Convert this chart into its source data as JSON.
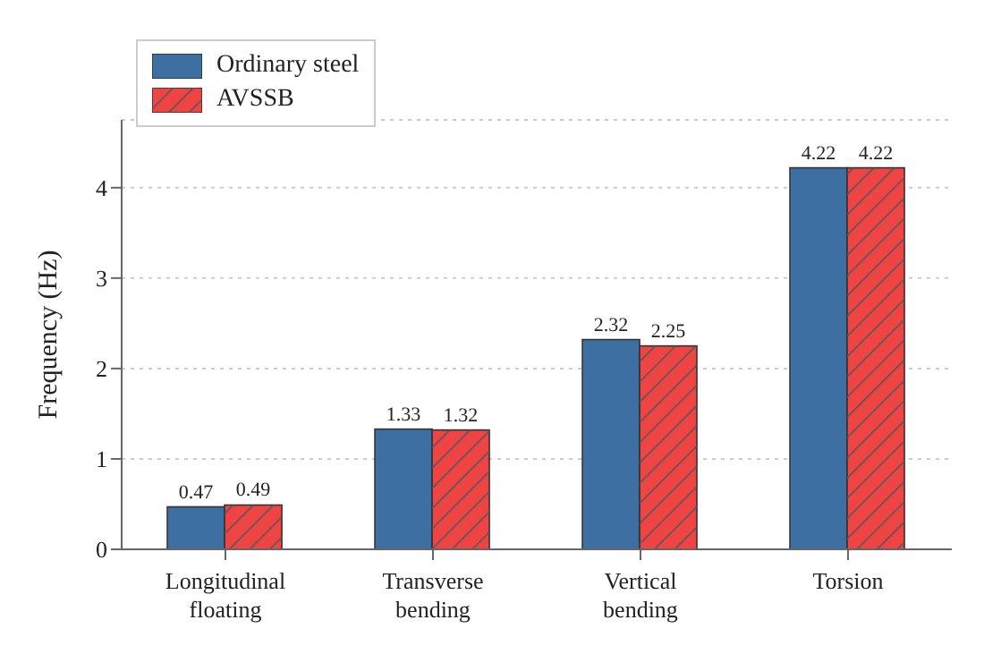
{
  "chart_data": {
    "type": "bar",
    "ylabel": "Frequency (Hz)",
    "categories": [
      "Longitudinal floating",
      "Transverse bending",
      "Vertical bending",
      "Torsion"
    ],
    "series": [
      {
        "name": "Ordinary steel",
        "color": "#3e6fa3",
        "values": [
          0.47,
          1.33,
          2.32,
          4.22
        ]
      },
      {
        "name": "AVSSB",
        "color": "#ee4444",
        "values": [
          0.49,
          1.32,
          2.25,
          4.22
        ]
      }
    ],
    "ylim": [
      0,
      4.75
    ],
    "yticks": [
      0,
      1,
      2,
      3,
      4
    ],
    "grid": "y",
    "legend": "top left",
    "data_labels": true
  }
}
